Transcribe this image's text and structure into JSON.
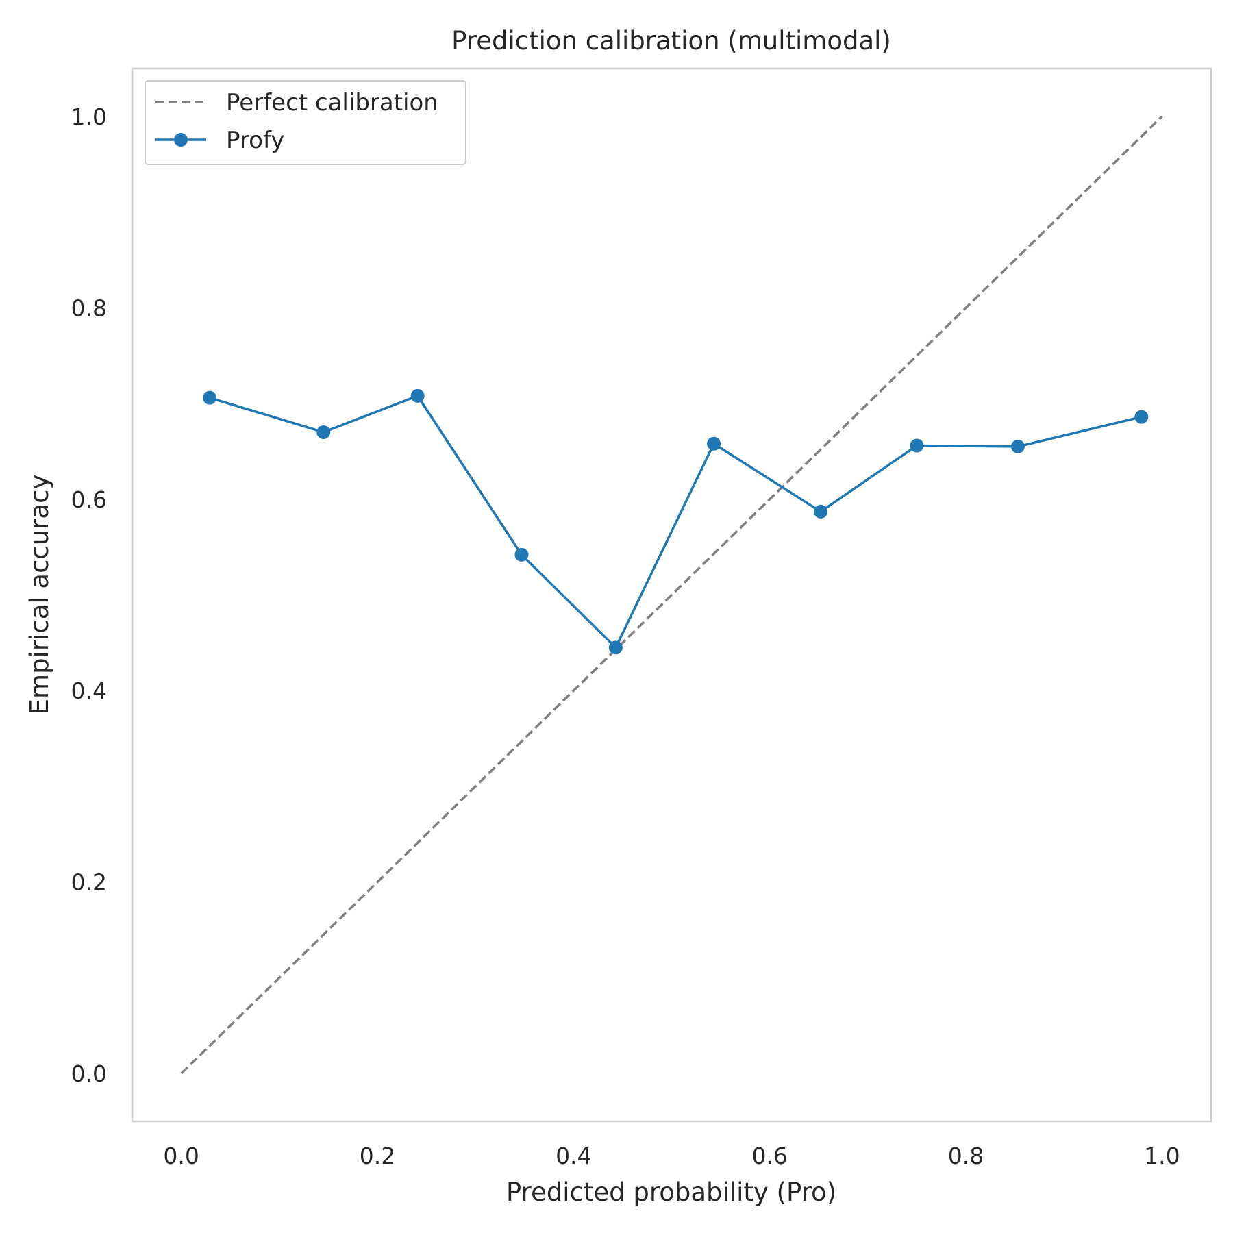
{
  "chart_data": {
    "type": "line",
    "title": "Prediction calibration (multimodal)",
    "xlabel": "Predicted probability (Pro)",
    "ylabel": "Empirical accuracy",
    "xlim": [
      -0.05,
      1.05
    ],
    "ylim": [
      -0.05,
      1.05
    ],
    "xticks": [
      "0.0",
      "0.2",
      "0.4",
      "0.6",
      "0.8",
      "1.0"
    ],
    "yticks": [
      "0.0",
      "0.2",
      "0.4",
      "0.6",
      "0.8",
      "1.0"
    ],
    "grid": false,
    "legend_position": "top-left",
    "series": [
      {
        "name": "Perfect calibration",
        "style": "dashed",
        "color": "#808080",
        "x": [
          0.0,
          1.0
        ],
        "y": [
          0.0,
          1.0
        ]
      },
      {
        "name": "Profy",
        "style": "solid-with-markers",
        "color": "#1f77b4",
        "x": [
          0.029,
          0.145,
          0.241,
          0.347,
          0.443,
          0.543,
          0.652,
          0.75,
          0.853,
          0.979
        ],
        "y": [
          0.706,
          0.67,
          0.708,
          0.542,
          0.445,
          0.658,
          0.587,
          0.656,
          0.655,
          0.686
        ]
      }
    ]
  }
}
